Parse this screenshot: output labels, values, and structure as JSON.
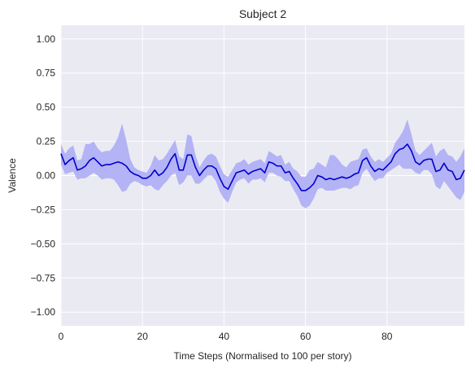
{
  "chart_data": {
    "type": "line",
    "title": "Subject 2",
    "xlabel": "Time Steps (Normalised to 100 per story)",
    "ylabel": "Valence",
    "xlim": [
      0,
      99
    ],
    "ylim": [
      -1.1,
      1.1
    ],
    "xticks": [
      0,
      20,
      40,
      60,
      80
    ],
    "yticks": [
      -1.0,
      -0.75,
      -0.5,
      -0.25,
      0.0,
      0.25,
      0.5,
      0.75,
      1.0
    ],
    "ytick_labels": [
      "−1.00",
      "−0.75",
      "−0.50",
      "−0.25",
      "0.00",
      "0.25",
      "0.50",
      "0.75",
      "1.00"
    ],
    "grid": true,
    "colors": {
      "line": "#0000cc",
      "band": "#b3b3f5",
      "background": "#eaeaf2",
      "grid": "#ffffff"
    },
    "series": [
      {
        "x": [
          0,
          1,
          2,
          3,
          4,
          5,
          6,
          7,
          8,
          9,
          10,
          11,
          12,
          13,
          14,
          15,
          16,
          17,
          18,
          19,
          20,
          21,
          22,
          23,
          24,
          25,
          26,
          27,
          28,
          29,
          30,
          31,
          32,
          33,
          34,
          35,
          36,
          37,
          38,
          39,
          40,
          41,
          42,
          43,
          44,
          45,
          46,
          47,
          48,
          49,
          50,
          51,
          52,
          53,
          54,
          55,
          56,
          57,
          58,
          59,
          60,
          61,
          62,
          63,
          64,
          65,
          66,
          67,
          68,
          69,
          70,
          71,
          72,
          73,
          74,
          75,
          76,
          77,
          78,
          79,
          80,
          81,
          82,
          83,
          84,
          85,
          86,
          87,
          88,
          89,
          90,
          91,
          92,
          93,
          94,
          95,
          96,
          97,
          98,
          99
        ],
        "values": [
          0.16,
          0.08,
          0.11,
          0.13,
          0.04,
          0.05,
          0.07,
          0.11,
          0.13,
          0.1,
          0.07,
          0.08,
          0.08,
          0.09,
          0.1,
          0.09,
          0.07,
          0.03,
          0.01,
          0.0,
          -0.02,
          -0.02,
          0.0,
          0.04,
          0.0,
          0.02,
          0.06,
          0.12,
          0.16,
          0.04,
          0.04,
          0.15,
          0.15,
          0.06,
          0.0,
          0.04,
          0.07,
          0.07,
          0.05,
          -0.02,
          -0.08,
          -0.1,
          -0.04,
          0.02,
          0.03,
          0.04,
          0.01,
          0.03,
          0.04,
          0.05,
          0.02,
          0.1,
          0.09,
          0.07,
          0.07,
          0.02,
          0.03,
          -0.02,
          -0.06,
          -0.11,
          -0.11,
          -0.09,
          -0.06,
          0.0,
          -0.01,
          -0.03,
          -0.02,
          -0.03,
          -0.02,
          -0.01,
          -0.02,
          -0.01,
          0.01,
          0.02,
          0.11,
          0.13,
          0.07,
          0.03,
          0.05,
          0.04,
          0.07,
          0.1,
          0.16,
          0.19,
          0.2,
          0.23,
          0.18,
          0.1,
          0.08,
          0.11,
          0.12,
          0.12,
          0.03,
          0.04,
          0.09,
          0.04,
          0.03,
          -0.03,
          -0.02,
          0.04
        ],
        "lower": [
          0.08,
          0.01,
          0.02,
          0.03,
          -0.03,
          -0.02,
          -0.02,
          0.0,
          0.02,
          0.0,
          -0.03,
          -0.02,
          -0.02,
          -0.03,
          -0.07,
          -0.12,
          -0.11,
          -0.06,
          -0.04,
          -0.05,
          -0.07,
          -0.08,
          -0.07,
          -0.1,
          -0.11,
          -0.07,
          -0.04,
          0.0,
          0.02,
          -0.07,
          -0.05,
          0.0,
          0.0,
          -0.06,
          -0.06,
          -0.03,
          0.0,
          0.0,
          -0.04,
          -0.12,
          -0.17,
          -0.2,
          -0.12,
          -0.05,
          -0.03,
          -0.02,
          -0.06,
          -0.03,
          -0.03,
          -0.02,
          -0.05,
          0.02,
          0.02,
          0.0,
          -0.01,
          -0.04,
          -0.04,
          -0.1,
          -0.15,
          -0.22,
          -0.24,
          -0.22,
          -0.17,
          -0.1,
          -0.09,
          -0.11,
          -0.11,
          -0.11,
          -0.1,
          -0.09,
          -0.09,
          -0.1,
          -0.08,
          -0.07,
          0.02,
          0.05,
          0.0,
          -0.04,
          -0.02,
          -0.02,
          0.02,
          0.04,
          0.06,
          0.08,
          0.05,
          0.05,
          0.05,
          0.02,
          0.01,
          0.04,
          0.04,
          0.01,
          -0.08,
          -0.1,
          -0.04,
          -0.08,
          -0.12,
          -0.16,
          -0.18,
          -0.12
        ]
      },
      {
        "x": [
          0,
          1,
          2,
          3,
          4,
          5,
          6,
          7,
          8,
          9,
          10,
          11,
          12,
          13,
          14,
          15,
          16,
          17,
          18,
          19,
          20,
          21,
          22,
          23,
          24,
          25,
          26,
          27,
          28,
          29,
          30,
          31,
          32,
          33,
          34,
          35,
          36,
          37,
          38,
          39,
          40,
          41,
          42,
          43,
          44,
          45,
          46,
          47,
          48,
          49,
          50,
          51,
          52,
          53,
          54,
          55,
          56,
          57,
          58,
          59,
          60,
          61,
          62,
          63,
          64,
          65,
          66,
          67,
          68,
          69,
          70,
          71,
          72,
          73,
          74,
          75,
          76,
          77,
          78,
          79,
          80,
          81,
          82,
          83,
          84,
          85,
          86,
          87,
          88,
          89,
          90,
          91,
          92,
          93,
          94,
          95,
          96,
          97,
          98,
          99
        ],
        "upper": [
          0.23,
          0.16,
          0.2,
          0.22,
          0.11,
          0.12,
          0.23,
          0.23,
          0.25,
          0.2,
          0.17,
          0.18,
          0.18,
          0.22,
          0.28,
          0.38,
          0.26,
          0.12,
          0.06,
          0.04,
          0.03,
          0.02,
          0.07,
          0.15,
          0.11,
          0.12,
          0.16,
          0.21,
          0.26,
          0.14,
          0.12,
          0.3,
          0.29,
          0.15,
          0.06,
          0.11,
          0.15,
          0.16,
          0.14,
          0.07,
          0.01,
          -0.01,
          0.04,
          0.09,
          0.1,
          0.12,
          0.08,
          0.1,
          0.11,
          0.12,
          0.09,
          0.18,
          0.16,
          0.14,
          0.15,
          0.08,
          0.1,
          0.05,
          0.03,
          -0.01,
          -0.01,
          0.04,
          0.05,
          0.1,
          0.08,
          0.06,
          0.15,
          0.15,
          0.12,
          0.08,
          0.06,
          0.1,
          0.11,
          0.12,
          0.19,
          0.2,
          0.14,
          0.1,
          0.12,
          0.1,
          0.13,
          0.16,
          0.24,
          0.28,
          0.33,
          0.41,
          0.3,
          0.18,
          0.15,
          0.18,
          0.21,
          0.24,
          0.14,
          0.18,
          0.2,
          0.15,
          0.14,
          0.1,
          0.14,
          0.2
        ]
      }
    ]
  }
}
